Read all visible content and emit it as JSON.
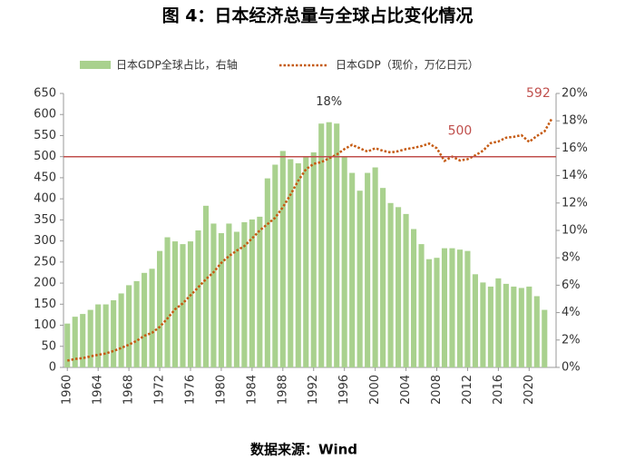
{
  "chart_data": {
    "type": "bar-line",
    "title": "图 4：日本经济总量与全球占比变化情况",
    "source": "数据来源：Wind",
    "x": [
      1960,
      1961,
      1962,
      1963,
      1964,
      1965,
      1966,
      1967,
      1968,
      1969,
      1970,
      1971,
      1972,
      1973,
      1974,
      1975,
      1976,
      1977,
      1978,
      1979,
      1980,
      1981,
      1982,
      1983,
      1984,
      1985,
      1986,
      1987,
      1988,
      1989,
      1990,
      1991,
      1992,
      1993,
      1994,
      1995,
      1996,
      1997,
      1998,
      1999,
      2000,
      2001,
      2002,
      2003,
      2004,
      2005,
      2006,
      2007,
      2008,
      2009,
      2010,
      2011,
      2012,
      2013,
      2014,
      2015,
      2016,
      2017,
      2018,
      2019,
      2020,
      2021,
      2022,
      2023
    ],
    "xlim": [
      1959.5,
      2023.5
    ],
    "xticks": [
      1960,
      1964,
      1968,
      1972,
      1976,
      1980,
      1984,
      1988,
      1992,
      1996,
      2000,
      2004,
      2008,
      2012,
      2016,
      2020
    ],
    "ylim": [
      0,
      650
    ],
    "yticks": [
      0,
      50,
      100,
      150,
      200,
      250,
      300,
      350,
      400,
      450,
      500,
      550,
      600,
      650
    ],
    "y2lim": [
      0,
      20
    ],
    "y2ticks": [
      {
        "value": 0,
        "label": "0%"
      },
      {
        "value": 2,
        "label": "2%"
      },
      {
        "value": 4,
        "label": "4%"
      },
      {
        "value": 6,
        "label": "6%"
      },
      {
        "value": 8,
        "label": "8%"
      },
      {
        "value": 10,
        "label": "10%"
      },
      {
        "value": 12,
        "label": "12%"
      },
      {
        "value": 14,
        "label": "14%"
      },
      {
        "value": 16,
        "label": "16%"
      },
      {
        "value": 18,
        "label": "18%"
      },
      {
        "value": 20,
        "label": "20%"
      }
    ],
    "series": [
      {
        "name": "日本GDP全球占比，右轴",
        "type": "bar",
        "axis": "y2",
        "color": "#a9d18e",
        "values": [
          3.2,
          3.7,
          3.9,
          4.2,
          4.6,
          4.6,
          4.9,
          5.4,
          6.0,
          6.3,
          6.9,
          7.2,
          8.5,
          9.5,
          9.2,
          9.0,
          9.2,
          10.0,
          11.8,
          10.5,
          9.8,
          10.5,
          9.9,
          10.6,
          10.8,
          11.0,
          13.8,
          14.8,
          15.8,
          15.2,
          14.9,
          15.4,
          15.7,
          17.8,
          17.9,
          17.8,
          15.4,
          14.2,
          12.9,
          14.2,
          14.6,
          13.1,
          12.0,
          11.7,
          11.2,
          10.1,
          9.0,
          7.9,
          8.0,
          8.7,
          8.7,
          8.6,
          8.5,
          6.8,
          6.2,
          5.9,
          6.5,
          6.1,
          5.9,
          5.8,
          5.9,
          5.2,
          4.2,
          null
        ]
      },
      {
        "name": "日本GDP（现价，万亿日元）",
        "type": "line",
        "axis": "y",
        "color": "#c55a11",
        "values": [
          16,
          20,
          22,
          26,
          30,
          33,
          39,
          46,
          54,
          63,
          75,
          82,
          96,
          116,
          138,
          152,
          171,
          190,
          209,
          226,
          248,
          264,
          277,
          288,
          306,
          325,
          340,
          355,
          380,
          410,
          443,
          470,
          483,
          487,
          496,
          505,
          518,
          528,
          520,
          512,
          520,
          514,
          510,
          513,
          518,
          521,
          525,
          531,
          520,
          490,
          500,
          491,
          494,
          503,
          514,
          532,
          536,
          545,
          547,
          551,
          535,
          549,
          560,
          592
        ]
      }
    ],
    "reference_line": {
      "value": 500,
      "color": "#c0504d"
    },
    "annotations": [
      "18%"
    ]
  }
}
